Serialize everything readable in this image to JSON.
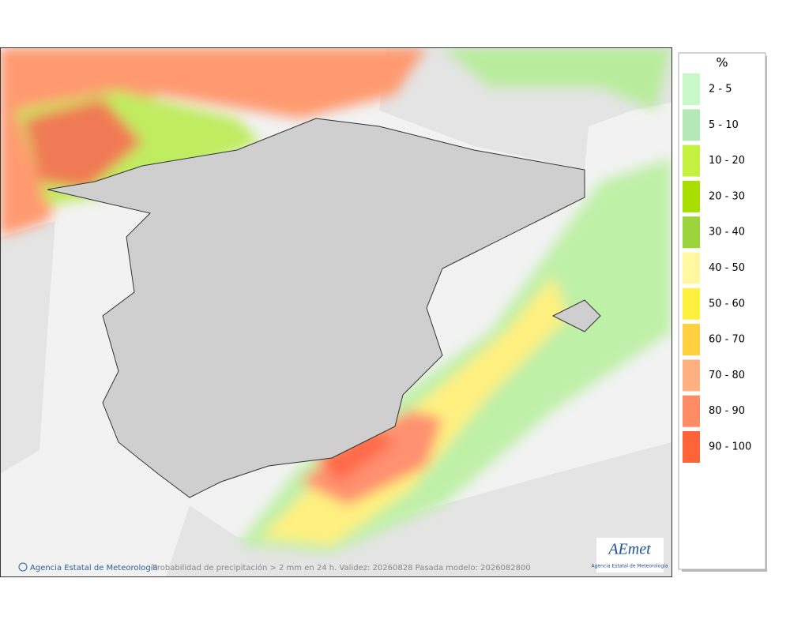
{
  "legend": {
    "title": "%",
    "items": [
      {
        "label": "2 - 5",
        "color": "#c8f8c8"
      },
      {
        "label": "5 - 10",
        "color": "#b4e8b8"
      },
      {
        "label": "10 - 20",
        "color": "#c4f040"
      },
      {
        "label": "20 - 30",
        "color": "#a8de00"
      },
      {
        "label": "30 - 40",
        "color": "#9cd43c"
      },
      {
        "label": "40 - 50",
        "color": "#fff8a0"
      },
      {
        "label": "50 - 60",
        "color": "#fff040"
      },
      {
        "label": "60 - 70",
        "color": "#ffd040"
      },
      {
        "label": "70 - 80",
        "color": "#ffb080"
      },
      {
        "label": "80 - 90",
        "color": "#ff8c64"
      },
      {
        "label": "90 - 100",
        "color": "#ff6438"
      }
    ]
  },
  "footer": {
    "credit": "Agencia Estatal de Meteorología",
    "caption": "Probabilidad de precipitación > 2 mm en 24 h. Validez: 20260828 Pasada modelo: 2026082800"
  },
  "logo": {
    "name": "AEmet",
    "subtitle": "Agencia Estatal de Meteorología"
  }
}
